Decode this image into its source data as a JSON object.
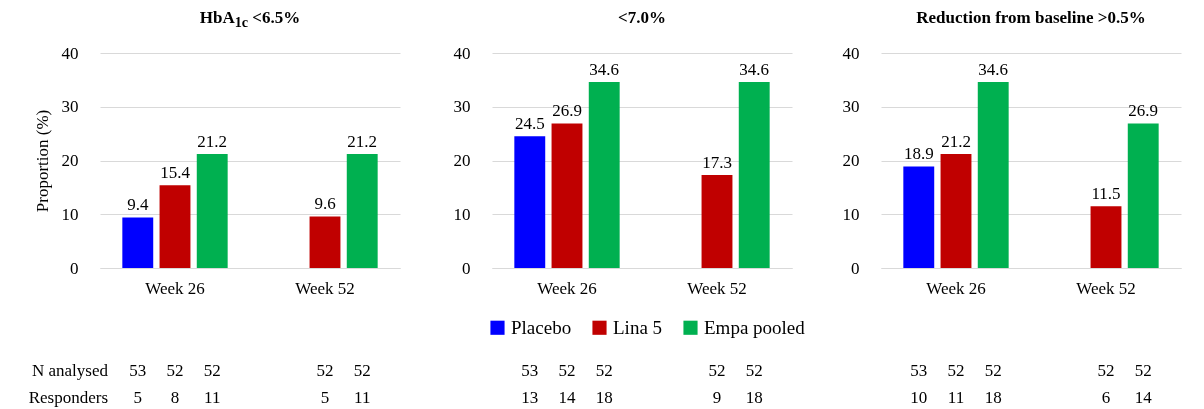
{
  "chart_data": [
    {
      "type": "bar",
      "title": "HbA$_{1c}$ <6.5%",
      "ylabel": "Proportion (%)",
      "categories": [
        "Week 26",
        "Week 52"
      ],
      "ylim": [
        0,
        40
      ],
      "yticks": [
        0,
        10,
        20,
        30,
        40
      ],
      "grid": "y",
      "data_labels": true,
      "legend": false,
      "series": [
        {
          "color": "#0000ff",
          "values": [
            9.4,
            null
          ]
        },
        {
          "color": "#c00000",
          "values": [
            15.4,
            9.6
          ]
        },
        {
          "color": "#00b050",
          "values": [
            21.2,
            21.2
          ]
        }
      ],
      "annotations": [
        "N analysed",
        "Responders",
        "53",
        "52",
        "52",
        "52",
        "52",
        "5",
        "8",
        "11",
        "5",
        "11"
      ]
    },
    {
      "type": "bar",
      "title": "<7.0%",
      "categories": [
        "Week 26",
        "Week 52"
      ],
      "ylim": [
        0,
        40
      ],
      "yticks": [
        0,
        10,
        20,
        30,
        40
      ],
      "grid": "y",
      "data_labels": true,
      "legend": "bottom",
      "series": [
        {
          "name": "Placebo",
          "color": "#0000ff",
          "values": [
            24.5,
            null
          ]
        },
        {
          "name": "Lina 5",
          "color": "#c00000",
          "values": [
            26.9,
            17.3
          ]
        },
        {
          "name": "Empa pooled",
          "color": "#00b050",
          "values": [
            34.6,
            34.6
          ]
        }
      ],
      "annotations": [
        "53",
        "52",
        "52",
        "52",
        "52",
        "13",
        "14",
        "18",
        "9",
        "18"
      ]
    },
    {
      "type": "bar",
      "title": "Reduction from baseline >0.5%",
      "categories": [
        "Week 26",
        "Week 52"
      ],
      "ylim": [
        0,
        40
      ],
      "yticks": [
        0,
        10,
        20,
        30,
        40
      ],
      "grid": "y",
      "data_labels": true,
      "legend": false,
      "series": [
        {
          "color": "#0000ff",
          "values": [
            18.9,
            null
          ]
        },
        {
          "color": "#c00000",
          "values": [
            21.2,
            11.5
          ]
        },
        {
          "color": "#00b050",
          "values": [
            34.6,
            26.9
          ]
        }
      ],
      "annotations": [
        "53",
        "52",
        "52",
        "52",
        "52",
        "10",
        "11",
        "18",
        "6",
        "14"
      ]
    }
  ]
}
